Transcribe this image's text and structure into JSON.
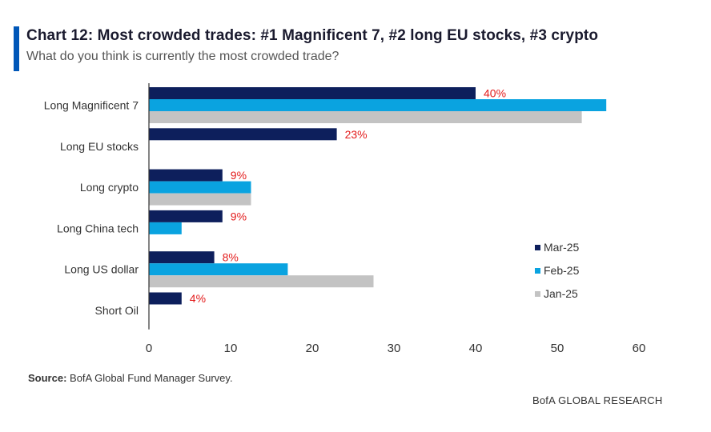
{
  "header": {
    "title": "Chart 12: Most crowded trades: #1 Magnificent 7, #2 long EU stocks, #3 crypto",
    "subtitle": "What do you think is currently the most crowded trade?"
  },
  "footer": {
    "source_label": "Source:",
    "source_text": " BofA Global Fund Manager Survey.",
    "brand": "BofA GLOBAL RESEARCH"
  },
  "colors": {
    "accent": "#0057b8",
    "mar25": "#0d1f5c",
    "feb25": "#0aa3e0",
    "jan25": "#c3c3c3",
    "label_red": "#e31c1c"
  },
  "chart_data": {
    "type": "bar",
    "orientation": "horizontal",
    "categories": [
      "Long Magnificent 7",
      "Long EU stocks",
      "Long crypto",
      "Long China tech",
      "Long US dollar",
      "Short Oil"
    ],
    "series": [
      {
        "name": "Mar-25",
        "color": "#0d1f5c",
        "values": [
          40,
          23,
          9,
          9,
          8,
          4
        ]
      },
      {
        "name": "Feb-25",
        "color": "#0aa3e0",
        "values": [
          56,
          null,
          12.5,
          4,
          17,
          null
        ]
      },
      {
        "name": "Jan-25",
        "color": "#c3c3c3",
        "values": [
          53,
          null,
          12.5,
          null,
          27.5,
          null
        ]
      }
    ],
    "data_labels": [
      "40%",
      "23%",
      "9%",
      "9%",
      "8%",
      "4%"
    ],
    "xlim": [
      0,
      60
    ],
    "xticks": [
      0,
      10,
      20,
      30,
      40,
      50,
      60
    ],
    "xlabel": "",
    "ylabel": "",
    "grid": false,
    "legend_position": "right"
  }
}
